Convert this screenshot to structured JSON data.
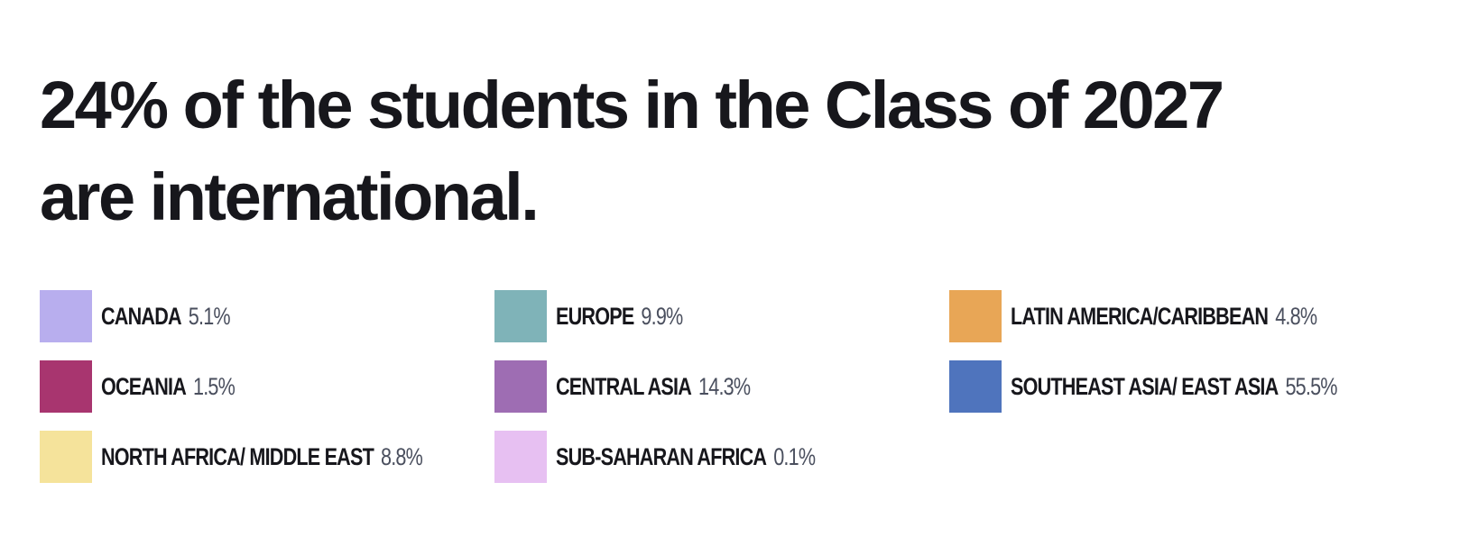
{
  "title": [
    "24% of the students in the Class of 2027",
    "are international."
  ],
  "items": [
    {
      "label": "CANADA",
      "value": "5.1%",
      "color": "#b8aeee"
    },
    {
      "label": "EUROPE",
      "value": "9.9%",
      "color": "#7fb3b8"
    },
    {
      "label": "LATIN AMERICA/CARIBBEAN",
      "value": "4.8%",
      "color": "#e8a656"
    },
    {
      "label": "OCEANIA",
      "value": "1.5%",
      "color": "#a8356f"
    },
    {
      "label": "CENTRAL ASIA",
      "value": "14.3%",
      "color": "#9e6db3"
    },
    {
      "label": "SOUTHEAST ASIA/ EAST ASIA",
      "value": "55.5%",
      "color": "#4f74bd"
    },
    {
      "label": "NORTH AFRICA/ MIDDLE EAST",
      "value": "8.8%",
      "color": "#f5e39b"
    },
    {
      "label": "SUB-SAHARAN AFRICA",
      "value": "0.1%",
      "color": "#e7c0f2"
    }
  ]
}
